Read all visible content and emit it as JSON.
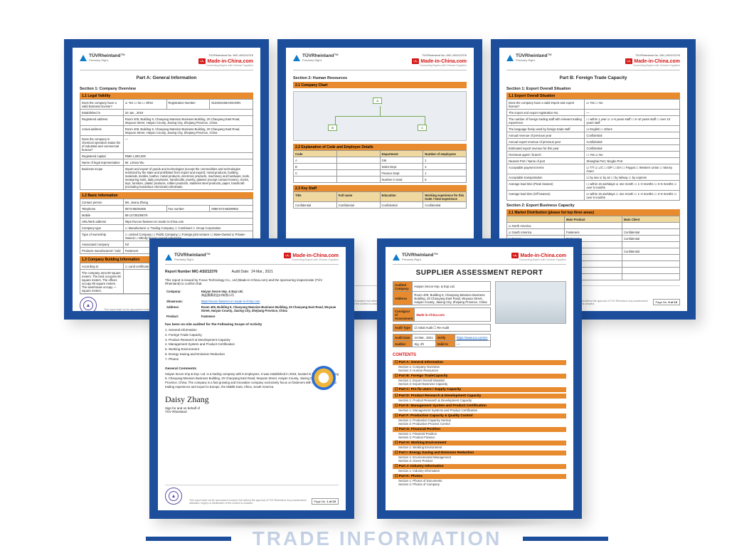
{
  "colors": {
    "frame": "#1c4e9c",
    "accent_orange": "#e88b2f",
    "mic_red": "#d31818",
    "tuv_blue": "#0f7ac8",
    "text": "#222222",
    "paper": "#ffffff"
  },
  "common": {
    "tuv_brand": "TÜVRheinland",
    "tuv_tag": "Precisely Right.",
    "mic_brand": "Made-in-China",
    "mic_tag": "Connecting Buyers with Chinese Suppliers",
    "report_no_label": "TÜVRheinland No. MIC-ASI212376",
    "disclaimer": "This report shall not be reproduced except in full without the approval of TÜV Rheinland. Any unauthorized alteration, forgery or falsification of the content is unlawful.",
    "page_prefix": "Page No."
  },
  "doc1": {
    "part": "Part A: General Information",
    "section": "Section 1: Company Overview",
    "band_legal": "1.1 Legal Validity",
    "rows_legal": [
      [
        "Does the company have a valid business license?",
        "☑ Yes   ☐ No   ☐ Other",
        "Registration Number",
        "91330424MA28CD0N"
      ],
      [
        "Established in",
        "20 Jan., 2019",
        "",
        ""
      ],
      [
        "Registered address",
        "Room 409, Building 9, Chaoyang Mansion Business Building, 20 Chaoyang East Road, Wuyuan Street, Haiyan County, Jiaxing City, Zhejiang Province, China",
        "",
        ""
      ],
      [
        "Actual address",
        "Room 409, Building 9, Chaoyang Mansion Business Building, 20 Chaoyang East Road, Wuyuan Street, Haiyan County, Jiaxing City, Zhejiang Province, China",
        "",
        ""
      ],
      [
        "Does the company in chemical operation status list of industrial and commercial bureau?",
        "—",
        "",
        ""
      ],
      [
        "Registered capital",
        "RMB 1,000,000",
        "",
        ""
      ],
      [
        "Name of legal representative",
        "Mr. Limiao Wu",
        "",
        ""
      ],
      [
        "Business scope",
        "Import and export of goods and technologies (except the commodities and technologies restricted by the state and prohibited from import and export); metal products, building materials, textiles, leather, metal products, electronic products, machinery and hardware, tools, measuring tools, daily provisions, handicrafts, jewelry, glasses (except contact lenses), clocks, toys, furniture, plastic products, rubber products, stainless steel products, paper, handicraft (excluding hazardous chemicals) wholesale.",
        "",
        ""
      ]
    ],
    "band_basic": "1.2 Basic Information",
    "rows_basic": [
      [
        "Contact person",
        "Ms. Jeana Zhang",
        "",
        ""
      ],
      [
        "Telephone",
        "0573-86291665",
        "Fax number",
        "0086-573-86280953"
      ],
      [
        "Mobile",
        "86-13738239079",
        "",
        ""
      ],
      [
        "URL/Web address",
        "https://secon-fastener.en.made-in-china.com",
        "",
        ""
      ],
      [
        "Company type",
        "☐ Manufacturer  ☑ Trading Company  ☐ Combined  ☐ Group Corporation",
        "",
        ""
      ],
      [
        "Type of ownership",
        "☐ Limited Company  ☐ Public Company  ☐ Foreign joint venture  ☐ State-Owned  ☑ Private-Owned  ☐ Wholly foreign-owned enterprise",
        "",
        ""
      ],
      [
        "Associated company",
        "Nil",
        "",
        ""
      ],
      [
        "Products manufactured / sold",
        "Fasteners",
        "",
        ""
      ]
    ],
    "band_build": "1.3 Company Building Information",
    "rows_build": [
      [
        "According to",
        "☐ Land certificate  ☐ Lease certificate  ☑ Lease agreement  ☑ Observation/confirmed on-site",
        "",
        ""
      ],
      [
        "The company area 80 square meters. The land occupies 80 square meters. The offices occupy 80 square meters. The warehouse occupy — square meters.",
        "",
        "",
        ""
      ]
    ],
    "page": "2 of 15"
  },
  "doc2": {
    "section": "Section 2: Human Resources",
    "band_chart": "2.1 Company Chart",
    "org": {
      "root": "A",
      "left": "B",
      "right": "C"
    },
    "band_costs": "2.2 Explanation of Code and Employee Details",
    "cost_head": [
      "Code",
      "",
      "Department",
      "Number of employees"
    ],
    "cost_rows": [
      [
        "A",
        "",
        "GM",
        "1"
      ],
      [
        "B",
        "",
        "Sales Dept.",
        "4"
      ],
      [
        "C",
        "",
        "Finance Dept.",
        "1"
      ],
      [
        "",
        "",
        "Number in total:",
        "6"
      ]
    ],
    "band_key": "2.3 Key Staff",
    "key_head": [
      "Title",
      "Full name",
      "Education",
      "Working experience for this trade / total experience"
    ],
    "key_rows": [
      [
        "Confidential",
        "Confidential",
        "Confidential",
        "Confidential"
      ]
    ],
    "page": "4 of 15"
  },
  "doc3": {
    "part": "Part B: Foreign Trade Capacity",
    "section1": "Section 1: Export Overall Situation",
    "band_overall": "1.1 Export Overall Situation",
    "rows_overall": [
      [
        "Does the company have a valid import and export license?",
        "☑ Yes   ☐ No"
      ],
      [
        "The import and export registration No.",
        "—"
      ],
      [
        "The number of foreign trading staff with relevant trading experience",
        "☐ within 1 year   ☑ 1–5 years staff   ☐ 6–10 years staff   ☐ over 10 years staff"
      ],
      [
        "The language freely used by foreign trade staff",
        "☑ English   ☐ others"
      ],
      [
        "Annual revenue of previous year",
        "Confidential"
      ],
      [
        "Annual export revenue of previous year",
        "Confidential"
      ],
      [
        "Estimated export revenue for this year",
        "Confidential"
      ],
      [
        "Overseas agent / branch",
        "☐ Yes   ☑ No"
      ],
      [
        "Nearest Port / Name of port",
        "Shanghai Port, Ningbo Port"
      ],
      [
        "Acceptable payment terms",
        "☑ T/T  ☑ L/C  ☐ D/P  ☐ D/A  ☐ Paypal  ☐ Western Union  ☐ Money Gram"
      ],
      [
        "Acceptable transportation",
        "☑ by sea  ☑ by air  ☐ by railway  ☐ by express"
      ],
      [
        "Average lead time (Peak Season)",
        "☐ within 15 workdays  ☑ one month  ☐ 1–3 months  ☐ 3–6 months  ☐ over 6 months"
      ],
      [
        "Average lead time (Off Season)",
        "☑ within 15 workdays  ☐ one month  ☐ 1–3 months  ☐ 3–6 months  ☐ over 6 months"
      ]
    ],
    "section2": "Section 2: Export Business Capacity",
    "band_market": "2.1 Market Distribution (please list top three areas)",
    "market_head": [
      "",
      "Main Product",
      "Main Client"
    ],
    "market_rows": [
      [
        "☑ North America",
        "",
        ""
      ],
      [
        "☑ South America",
        "Fasteners",
        "Confidential"
      ],
      [
        "☑ Europe",
        "Fasteners",
        "Confidential"
      ],
      [
        "☐ Southeast Asia/Mideast",
        "",
        ""
      ],
      [
        "☑ Africa",
        "Fasteners",
        "Confidential"
      ],
      [
        "☐ East Asia(Japan/South Korea)",
        "",
        ""
      ],
      [
        "☐ Australia",
        "",
        ""
      ],
      [
        "☐ Domestic",
        "",
        ""
      ],
      [
        "☐ Other",
        "",
        ""
      ]
    ],
    "page": "5 of 15"
  },
  "doc4": {
    "report_label": "Report Number MIC-ASI212376",
    "audit_date_label": "Audit Date:",
    "audit_date": "24 Mar., 2021",
    "intro": "This report is issued by Focus Technology Co., Ltd (Made-in-China.com) and the sponsoring inspectorate (TÜV Rheinland) to confirm that",
    "company_label": "Company:",
    "company": "Haiyan Secon Imp. & Exp Ltd.",
    "company_cn": "海盐赛康进出口有限公司",
    "showroom_label": "Showroom:",
    "showroom": "https://secon-fastener.en.made-in-china.com",
    "address_label": "Address:",
    "address": "Room 409, Building 9, Chaoyang Mansion Business Building, 20 Chaoyang East Road, Wuyuan Street, Haiyan County, Jiaxing City, Zhejiang Province, China",
    "product_label": "Product:",
    "product": "Fasteners",
    "scope_intro": "has been on-site audited for the Following Scope of Activity",
    "scope": [
      "1. General Information",
      "2. Foreign Trade Capacity",
      "3. Product Research & Development Capacity",
      "4. Management System and Product Certification",
      "5. Working Environment",
      "6. Energy Saving and Emission Reduction",
      "7. Photos"
    ],
    "gc_label": "General Comments",
    "gc": "Haiyan Secon Imp & Exp. Ltd. is a trading company with 6 employees. It was established in 2019, located in Room 409, Building 9, Chaoyang Mansion Business Building, 20 Chaoyang East Road, Wuyuan Street, Haiyan County, Jiaxing City, Zhejiang Province, China. The company is a fast growing and innovative company exclusively focus on fasteners with successful foreign trading experience and export to Europe, the Middle East, Africa, South America.",
    "sign_label": "Sign for and on behalf of",
    "sign_org": "TÜV Rheinland",
    "signature": "Daisy Zhang",
    "page": "1 of 15"
  },
  "doc5": {
    "title": "SUPPLIER ASSESSMENT REPORT",
    "rows_top": [
      [
        "Audited Company",
        "Haiyan Secon Imp. & Exp Ltd."
      ],
      [
        "Address",
        "Room 409, Building 9, Chaoyang Mansion Business Building, 20 Chaoyang East Road, Wuyuan Street, Haiyan County, Jiaxing City, Zhejiang Province, China"
      ]
    ],
    "consignor": [
      "Consignor of Assessment",
      "Made-in-China.com"
    ],
    "audit_type": [
      "Audit Type",
      "☑ Initial Audit   ☐ Re-Audit"
    ],
    "audit_date": [
      "Audit Date",
      "24 Mar., 2021"
    ],
    "auditor": [
      "Auditor",
      "Sig. Zh"
    ],
    "verify": [
      "Verify",
      "https://www.tuv.com/cn",
      "Valid to",
      "—"
    ],
    "contents_label": "CONTENTS",
    "parts": [
      {
        "h": "Part A: General Information",
        "s": [
          "Section 1: Company Overview",
          "Section 2: Human Resources"
        ]
      },
      {
        "h": "Part B: Foreign TradeCapacity",
        "s": [
          "Section 1: Export Overall Situation",
          "Section 2: Export Business Capacity"
        ]
      },
      {
        "h": "Part C: Pro fix users / Supply Capacity",
        "s": []
      },
      {
        "h": "Part D: Product Research & Development Capacity",
        "s": [
          "Section 1: Product Research & Development Capacity"
        ]
      },
      {
        "h": "Part E: Management System and Product Certification",
        "s": [
          "Section 1: Management Systems and Product Certification"
        ]
      },
      {
        "h": "Part F: Production Capacity & Quality Control",
        "s": [
          "Section 1: Production Capacity Section",
          "Section 2: Production Process Control"
        ]
      },
      {
        "h": "Part G: Financial Position",
        "s": [
          "Section 1: Financial Position",
          "Section 2: Product Finance"
        ]
      },
      {
        "h": "Part H: Working Environment",
        "s": [
          "Section 1: Working Environment"
        ]
      },
      {
        "h": "Part I: Energy Saving and Emission Reduction",
        "s": [
          "Section 1: Environmental Management",
          "Section 2: Green Product"
        ]
      },
      {
        "h": "Part J: Industry Information",
        "s": [
          "Section 1: Industry Information"
        ]
      },
      {
        "h": "Part K: Photos",
        "s": [
          "Section 1: Photos of Documents",
          "Section 2: Photos of Company"
        ]
      }
    ]
  },
  "bottom_text": "TRADE INFORMATION"
}
